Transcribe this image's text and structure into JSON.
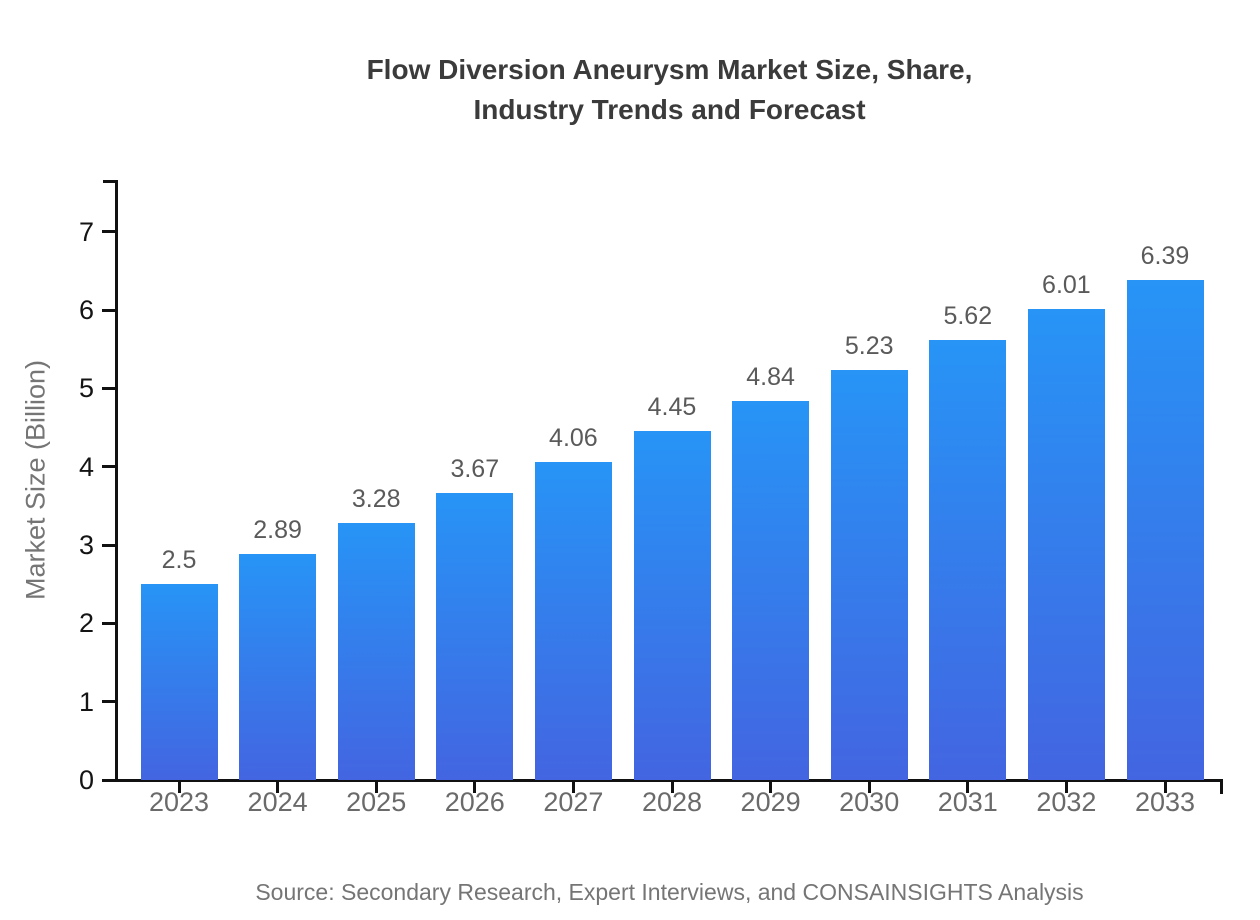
{
  "chart_data": {
    "type": "bar",
    "title": "Flow Diversion Aneurysm Market Size, Share, Industry Trends and Forecast",
    "title_lines": [
      "Flow Diversion Aneurysm Market Size, Share,",
      "Industry Trends and Forecast"
    ],
    "ylabel": "Market Size (Billion)",
    "xlabel": "",
    "categories": [
      "2023",
      "2024",
      "2025",
      "2026",
      "2027",
      "2028",
      "2029",
      "2030",
      "2031",
      "2032",
      "2033"
    ],
    "values": [
      2.5,
      2.89,
      3.28,
      3.67,
      4.06,
      4.45,
      4.84,
      5.23,
      5.62,
      6.01,
      6.39
    ],
    "value_labels": [
      "2.5",
      "2.89",
      "3.28",
      "3.67",
      "4.06",
      "4.45",
      "4.84",
      "5.23",
      "5.62",
      "6.01",
      "6.39"
    ],
    "yticks": [
      0,
      1,
      2,
      3,
      4,
      5,
      6,
      7
    ],
    "ylim": [
      0,
      7.66
    ],
    "grid": false,
    "legend": "none",
    "bar_gradient_top": "#2794F6",
    "bar_gradient_bottom": "#4365E1",
    "source": "Source: Secondary Research, Expert Interviews, and CONSAINSIGHTS Analysis",
    "colors": {
      "background": "#FFFFFF",
      "title": "#3B3B3B",
      "axis": "#111111",
      "ytick_label": "#141414",
      "xtick_label": "#6A6A6A",
      "value_label": "#5A5A5A",
      "ylabel": "#757575",
      "source": "#757575"
    }
  }
}
